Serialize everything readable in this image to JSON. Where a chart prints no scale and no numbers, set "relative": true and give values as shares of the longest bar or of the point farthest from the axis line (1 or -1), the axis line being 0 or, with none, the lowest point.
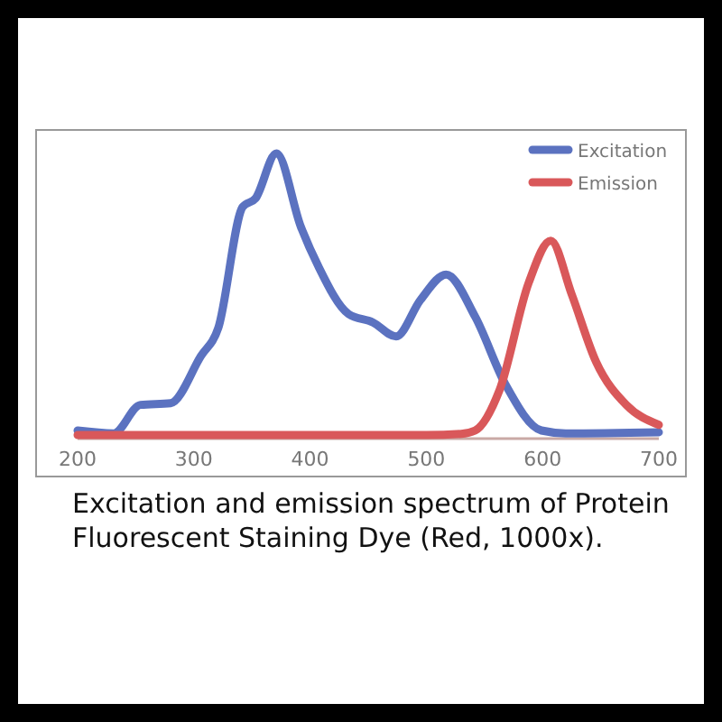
{
  "chart_data": {
    "type": "line",
    "relative": true,
    "xlim": [
      200,
      700
    ],
    "xticks": [
      200,
      300,
      400,
      500,
      600,
      700
    ],
    "legend": "top right",
    "annotations": [
      "Excitation and emission spectrum of Protein Fluorescent Staining Dye (Red, 1000x)."
    ],
    "series": [
      {
        "name": "Excitation",
        "color": "#5b72c0",
        "x": [
          200,
          231,
          254,
          280,
          306,
          321,
          342,
          353,
          371,
          392,
          407,
          433,
          454,
          474,
          495,
          517,
          542,
          568,
          599,
          620,
          700
        ],
        "values": [
          0.016,
          0.006,
          0.107,
          0.113,
          0.28,
          0.38,
          0.81,
          0.84,
          1.0,
          0.74,
          0.6,
          0.43,
          0.4,
          0.35,
          0.48,
          0.57,
          0.42,
          0.18,
          0.016,
          0.006,
          0.01
        ]
      },
      {
        "name": "Emission",
        "color": "#d9585a",
        "x": [
          200,
          300,
          400,
          500,
          530,
          542,
          563,
          588,
          607,
          625,
          646,
          672,
          700
        ],
        "values": [
          0,
          0,
          0,
          0,
          0.004,
          0.016,
          0.16,
          0.54,
          0.69,
          0.5,
          0.26,
          0.107,
          0.036
        ]
      }
    ]
  }
}
